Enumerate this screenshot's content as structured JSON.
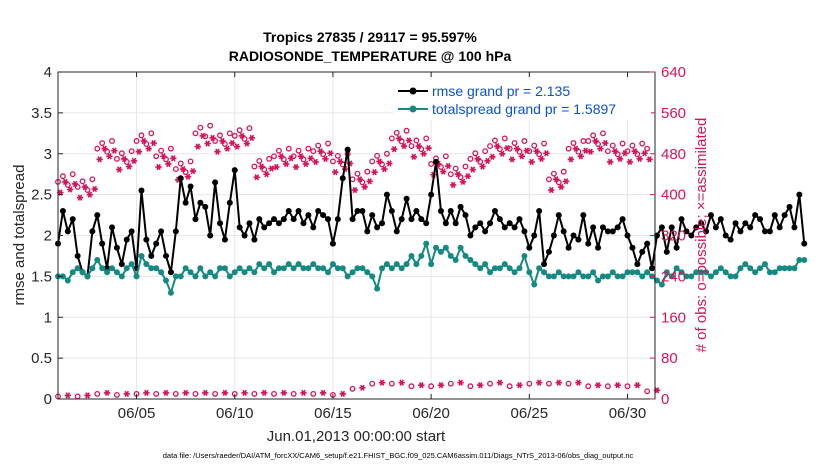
{
  "chart_data": {
    "type": "line",
    "title": "Tropics 27835 / 29117 = 95.597%",
    "subtitle": "RADIOSONDE_TEMPERATURE @ 100 hPa",
    "xlabel": "Jun.01,2013 00:00:00 start",
    "ylabel_left": "rmse and totalspread",
    "ylabel_right": "# of obs: o=possible; ×=assimilated",
    "xlim": [
      1,
      31.4
    ],
    "ylim_left": [
      0,
      4
    ],
    "ylim_right": [
      0,
      640
    ],
    "x_ticks": [
      5,
      10,
      15,
      20,
      25,
      30
    ],
    "x_tick_labels": [
      "06/05",
      "06/10",
      "06/15",
      "06/20",
      "06/25",
      "06/30"
    ],
    "y_left_ticks": [
      0,
      0.5,
      1,
      1.5,
      2,
      2.5,
      3,
      3.5,
      4
    ],
    "y_left_tick_labels": [
      "0",
      "0.5",
      "1",
      "1.5",
      "2",
      "2.5",
      "3",
      "3.5",
      "4"
    ],
    "y_right_ticks": [
      0,
      80,
      160,
      240,
      320,
      400,
      480,
      560,
      640
    ],
    "y_right_tick_labels": [
      "0",
      "80",
      "160",
      "240",
      "320",
      "400",
      "480",
      "560",
      "640"
    ],
    "start_day": 1.0,
    "step_days": 0.25,
    "series": [
      {
        "name": "rmse grand pr = 2.135",
        "axis": "left",
        "color": "#000000",
        "marker": "dot",
        "values": [
          1.9,
          2.3,
          2.05,
          2.2,
          1.75,
          1.55,
          1.5,
          2.05,
          2.25,
          1.9,
          1.6,
          2.1,
          1.85,
          1.65,
          1.95,
          2.05,
          1.6,
          2.55,
          1.95,
          1.75,
          1.9,
          2.05,
          1.75,
          1.55,
          2.05,
          2.7,
          2.4,
          2.6,
          2.2,
          2.4,
          2.35,
          2.0,
          2.65,
          2.15,
          1.95,
          2.4,
          2.8,
          2.1,
          2.0,
          2.15,
          1.95,
          2.2,
          2.1,
          2.15,
          2.2,
          2.15,
          2.2,
          2.3,
          2.2,
          2.3,
          2.15,
          2.25,
          2.1,
          2.3,
          2.25,
          2.2,
          1.9,
          2.2,
          2.7,
          3.05,
          2.2,
          2.3,
          2.3,
          2.05,
          2.25,
          2.1,
          2.15,
          2.5,
          2.3,
          2.05,
          2.2,
          2.45,
          2.2,
          2.3,
          2.2,
          2.15,
          2.5,
          2.9,
          2.3,
          2.15,
          2.3,
          2.15,
          2.35,
          2.25,
          2.0,
          2.1,
          2.15,
          2.05,
          2.15,
          2.3,
          2.2,
          2.1,
          2.15,
          2.1,
          2.2,
          2.05,
          1.85,
          2.0,
          2.3,
          1.65,
          1.8,
          2.0,
          2.25,
          2.05,
          1.85,
          2.0,
          1.95,
          2.25,
          1.9,
          2.1,
          1.85,
          2.1,
          2.05,
          2.05,
          2.1,
          2.2,
          2.0,
          1.85,
          1.65,
          1.8,
          1.9,
          1.6,
          2.0,
          2.1,
          1.8,
          2.1,
          1.85,
          2.2,
          2.05,
          2.0,
          2.1,
          2.15,
          2.05,
          2.25,
          2.1,
          2.2,
          2.0,
          1.95,
          2.15,
          2.05,
          2.15,
          2.1,
          2.25,
          2.2,
          2.05,
          2.05,
          2.25,
          2.1,
          2.25,
          2.35,
          2.1,
          2.5,
          1.9
        ]
      },
      {
        "name": "totalspread grand pr = 1.5897",
        "axis": "left",
        "color": "#158a82",
        "marker": "dot",
        "values": [
          1.5,
          1.5,
          1.45,
          1.55,
          1.6,
          1.55,
          1.5,
          1.6,
          1.7,
          1.6,
          1.55,
          1.6,
          1.55,
          1.5,
          1.6,
          1.65,
          1.5,
          1.75,
          1.65,
          1.6,
          1.6,
          1.55,
          1.45,
          1.3,
          1.5,
          1.5,
          1.6,
          1.55,
          1.5,
          1.6,
          1.5,
          1.55,
          1.5,
          1.6,
          1.6,
          1.5,
          1.55,
          1.6,
          1.55,
          1.6,
          1.55,
          1.65,
          1.6,
          1.65,
          1.55,
          1.6,
          1.6,
          1.65,
          1.6,
          1.65,
          1.6,
          1.6,
          1.65,
          1.6,
          1.6,
          1.55,
          1.65,
          1.6,
          1.6,
          1.5,
          1.55,
          1.6,
          1.6,
          1.55,
          1.5,
          1.35,
          1.6,
          1.65,
          1.6,
          1.65,
          1.6,
          1.65,
          1.75,
          1.65,
          1.75,
          1.9,
          1.65,
          1.85,
          1.8,
          1.85,
          1.75,
          1.7,
          1.85,
          1.75,
          1.7,
          1.65,
          1.6,
          1.65,
          1.55,
          1.6,
          1.6,
          1.65,
          1.6,
          1.55,
          1.6,
          1.75,
          1.55,
          1.4,
          1.6,
          1.55,
          1.5,
          1.5,
          1.55,
          1.5,
          1.5,
          1.5,
          1.55,
          1.5,
          1.5,
          1.55,
          1.45,
          1.5,
          1.5,
          1.55,
          1.5,
          1.5,
          1.55,
          1.55,
          1.55,
          1.5,
          1.55,
          1.5,
          1.45,
          1.4,
          1.55,
          1.5,
          1.6,
          1.55,
          1.5,
          1.5,
          1.55,
          1.55,
          1.55,
          1.5,
          1.55,
          1.6,
          1.55,
          1.5,
          1.5,
          1.6,
          1.65,
          1.6,
          1.55,
          1.6,
          1.65,
          1.55,
          1.55,
          1.6,
          1.6,
          1.6,
          1.6,
          1.7,
          1.7
        ]
      }
    ],
    "obs_possible_center": [
      425,
      415,
      490,
      470,
      505,
      475,
      450,
      520,
      505,
      515,
      455,
      475,
      475,
      485,
      465,
      430,
      465,
      510,
      495,
      460,
      440,
      470,
      495,
      490,
      485,
      430,
      490,
      505,
      485,
      485,
      490,
      470
    ],
    "obs_assimilated_center": [
      410,
      400,
      475,
      455,
      490,
      460,
      435,
      500,
      490,
      500,
      440,
      460,
      460,
      470,
      450,
      415,
      450,
      495,
      480,
      445,
      425,
      455,
      480,
      475,
      470,
      415,
      475,
      490,
      470,
      470,
      475,
      455
    ],
    "obs_bottom_possible": [
      5,
      5,
      10,
      8,
      10,
      10,
      10,
      10,
      10,
      10,
      10,
      10,
      10,
      10,
      8,
      20,
      30,
      30,
      25,
      25,
      30,
      25,
      30,
      25,
      30,
      30,
      30,
      25,
      25,
      25,
      15
    ],
    "obs_bottom_assimilated": [
      3,
      3,
      8,
      6,
      8,
      8,
      8,
      8,
      8,
      8,
      8,
      8,
      8,
      8,
      6,
      18,
      28,
      28,
      23,
      23,
      28,
      23,
      28,
      23,
      28,
      28,
      28,
      23,
      23,
      23,
      13
    ],
    "obs_color": "#d6145c",
    "legend_position": "top-right"
  },
  "footnote": "data file: /Users/raeder/DAI/ATM_forcXX/CAM6_setup/f.e21.FHIST_BGC.f09_025.CAM6assim.011/Diags_NTrS_2013-06/obs_diag_output.nc"
}
